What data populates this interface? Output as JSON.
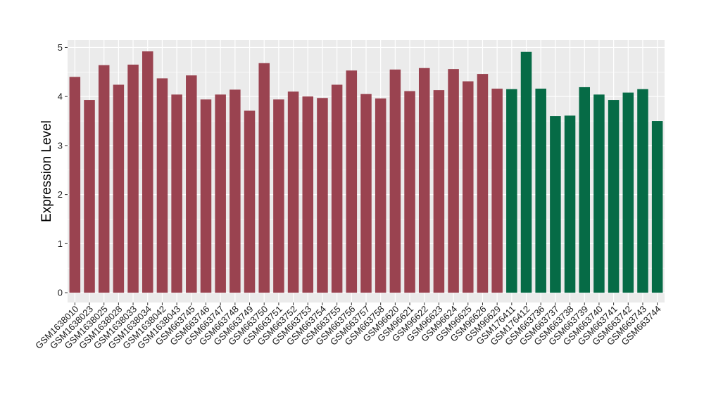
{
  "chart_data": {
    "type": "bar",
    "title": "",
    "xlabel": "",
    "ylabel": "Expression Level",
    "ylim": [
      -0.2,
      5.15
    ],
    "yticks": [
      0,
      1,
      2,
      3,
      4,
      5
    ],
    "grid": true,
    "legend": "none",
    "colors": {
      "group1": "#9a4350",
      "group2": "#066b46",
      "panel": "#ebebeb",
      "grid": "#ffffff"
    },
    "categories": [
      "GSM1638010",
      "GSM1638023",
      "GSM1638025",
      "GSM1638028",
      "GSM1638033",
      "GSM1638034",
      "GSM1638042",
      "GSM1638043",
      "GSM663745",
      "GSM663746",
      "GSM663747",
      "GSM663748",
      "GSM663749",
      "GSM663750",
      "GSM663751",
      "GSM663752",
      "GSM663753",
      "GSM663754",
      "GSM663755",
      "GSM663756",
      "GSM663757",
      "GSM663758",
      "GSM96620",
      "GSM96621",
      "GSM96622",
      "GSM96623",
      "GSM96624",
      "GSM96625",
      "GSM96626",
      "GSM96629",
      "GSM176411",
      "GSM176412",
      "GSM663736",
      "GSM663737",
      "GSM663738",
      "GSM663739",
      "GSM663740",
      "GSM663741",
      "GSM663742",
      "GSM663743",
      "GSM663744"
    ],
    "values": [
      4.4,
      3.93,
      4.64,
      4.24,
      4.65,
      4.92,
      4.37,
      4.04,
      4.43,
      3.94,
      4.04,
      4.14,
      3.71,
      4.68,
      3.94,
      4.1,
      4.0,
      3.97,
      4.24,
      4.53,
      4.05,
      3.96,
      4.55,
      4.11,
      4.58,
      4.13,
      4.56,
      4.31,
      4.46,
      4.16,
      4.15,
      4.91,
      4.16,
      3.6,
      3.61,
      4.19,
      4.04,
      3.93,
      4.08,
      4.15,
      3.5
    ],
    "groups": [
      1,
      1,
      1,
      1,
      1,
      1,
      1,
      1,
      1,
      1,
      1,
      1,
      1,
      1,
      1,
      1,
      1,
      1,
      1,
      1,
      1,
      1,
      1,
      1,
      1,
      1,
      1,
      1,
      1,
      1,
      2,
      2,
      2,
      2,
      2,
      2,
      2,
      2,
      2,
      2,
      2
    ]
  }
}
